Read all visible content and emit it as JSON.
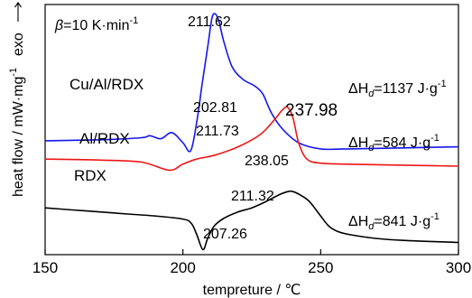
{
  "chart_data": {
    "type": "line",
    "title": "",
    "xlabel": "tempreture / ℃",
    "ylabel": "heat flow / mW·mg",
    "ylabel_sup": "-1",
    "exo_label": "exo",
    "xlim": [
      150,
      300
    ],
    "xticks": [
      150,
      200,
      250,
      300
    ],
    "y_ticks_shown": false,
    "grid": false,
    "legend": "none",
    "rate_annotation": {
      "symbol": "β",
      "text": "=10 K·min",
      "sup": "-1"
    },
    "series": [
      {
        "name": "Cu/Al/RDX",
        "color": "#1515ee",
        "x": [
          150,
          170,
          185,
          188,
          192,
          196,
          200,
          202.81,
          205,
          207,
          209,
          210.5,
          211.62,
          213,
          215,
          218,
          222,
          226,
          229,
          232,
          236,
          242,
          250,
          260,
          280,
          300
        ],
        "y": [
          5.6,
          5.65,
          5.75,
          5.85,
          5.7,
          6.0,
          5.5,
          5.1,
          6.5,
          8.4,
          10.2,
          11.6,
          11.85,
          11.5,
          10.4,
          9.2,
          8.6,
          8.3,
          7.9,
          7.0,
          6.2,
          5.5,
          5.2,
          5.2,
          5.25,
          5.3
        ],
        "annotation": "ΔH",
        "annotation_sub": "d",
        "annotation_value": "=1137 J·g",
        "annotation_sup": "-1"
      },
      {
        "name": "Al/RDX",
        "color": "#ee1515",
        "x": [
          150,
          170,
          185,
          195,
          200,
          205,
          211.73,
          220,
          228,
          233,
          236,
          237.98,
          240,
          242,
          245,
          250,
          260,
          280,
          300
        ],
        "y": [
          4.7,
          4.65,
          4.55,
          4.15,
          4.45,
          4.7,
          4.9,
          5.3,
          5.9,
          6.6,
          7.1,
          7.25,
          6.7,
          5.5,
          4.7,
          4.5,
          4.45,
          4.4,
          4.35
        ],
        "annotation": "ΔH",
        "annotation_sub": "d",
        "annotation_value": "=584 J·g",
        "annotation_sup": "-1"
      },
      {
        "name": "RDX",
        "color": "#000000",
        "x": [
          150,
          160,
          170,
          180,
          190,
          200,
          203,
          205,
          207.26,
          209,
          211.32,
          215,
          220,
          225,
          230,
          235,
          238.05,
          240,
          243,
          246,
          250,
          253,
          256,
          260,
          270,
          280,
          300
        ],
        "y": [
          2.3,
          2.2,
          2.1,
          2.0,
          1.9,
          1.75,
          1.55,
          1.0,
          0.25,
          0.8,
          1.4,
          1.8,
          2.1,
          2.3,
          2.6,
          2.95,
          3.1,
          3.1,
          2.9,
          2.6,
          1.9,
          1.4,
          1.15,
          1.0,
          0.8,
          0.7,
          0.6
        ],
        "annotation": "ΔH",
        "annotation_sub": "d",
        "annotation_value": "=841 J·g",
        "annotation_sup": "-1"
      }
    ],
    "peak_labels": [
      {
        "text": "211.62",
        "series": 0
      },
      {
        "text": "202.81",
        "series": 0
      },
      {
        "text": "211.73",
        "series": 1
      },
      {
        "text": "237.98",
        "series": 1
      },
      {
        "text": "238.05",
        "series": 2
      },
      {
        "text": "211.32",
        "series": 2
      },
      {
        "text": "207.26",
        "series": 2
      }
    ]
  }
}
